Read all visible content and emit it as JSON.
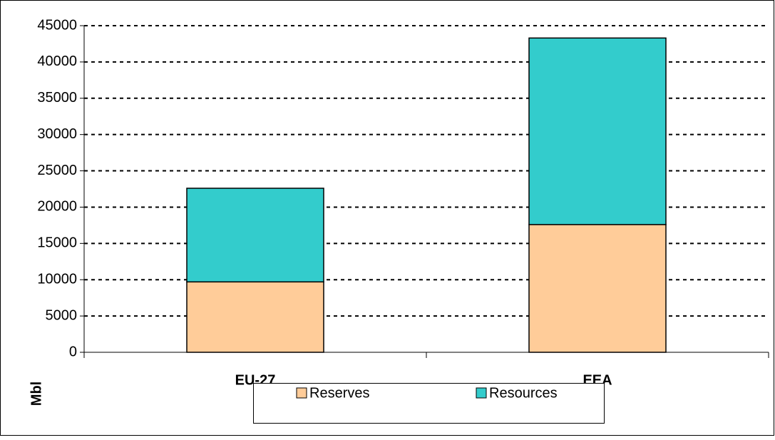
{
  "chart_data": {
    "type": "stacked_bar",
    "y_label": "Mbl",
    "categories": [
      "EU-27",
      "EEA"
    ],
    "series": [
      {
        "name": "Reserves",
        "color": "#ffcc99",
        "values": [
          9700,
          17600
        ]
      },
      {
        "name": "Resources",
        "color": "#33cccc",
        "values": [
          12900,
          25700
        ]
      }
    ],
    "ylim": [
      0,
      45000
    ],
    "yticks": [
      0,
      5000,
      10000,
      15000,
      20000,
      25000,
      30000,
      35000,
      40000,
      45000
    ],
    "grid": true,
    "legend": "bottom"
  }
}
